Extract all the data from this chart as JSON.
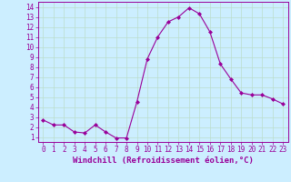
{
  "x": [
    0,
    1,
    2,
    3,
    4,
    5,
    6,
    7,
    8,
    9,
    10,
    11,
    12,
    13,
    14,
    15,
    16,
    17,
    18,
    19,
    20,
    21,
    22,
    23
  ],
  "y": [
    2.7,
    2.2,
    2.2,
    1.5,
    1.4,
    2.2,
    1.5,
    0.9,
    0.9,
    4.5,
    8.8,
    11.0,
    12.5,
    13.0,
    13.9,
    13.3,
    11.5,
    8.3,
    6.8,
    5.4,
    5.2,
    5.2,
    4.8,
    4.3
  ],
  "line_color": "#990099",
  "marker": "D",
  "marker_size": 2.0,
  "xlabel": "Windchill (Refroidissement éolien,°C)",
  "ylim": [
    0.5,
    14.5
  ],
  "xlim": [
    -0.5,
    23.5
  ],
  "yticks": [
    1,
    2,
    3,
    4,
    5,
    6,
    7,
    8,
    9,
    10,
    11,
    12,
    13,
    14
  ],
  "xticks": [
    0,
    1,
    2,
    3,
    4,
    5,
    6,
    7,
    8,
    9,
    10,
    11,
    12,
    13,
    14,
    15,
    16,
    17,
    18,
    19,
    20,
    21,
    22,
    23
  ],
  "background_color": "#cceeff",
  "grid_color": "#bbddcc",
  "tick_color": "#990099",
  "label_color": "#990099",
  "tick_fontsize": 5.5,
  "xlabel_fontsize": 6.5
}
